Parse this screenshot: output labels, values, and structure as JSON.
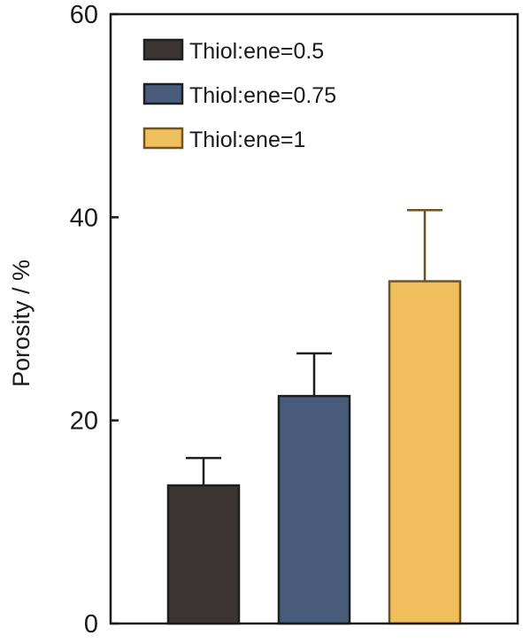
{
  "chart_data": {
    "type": "bar",
    "title": "",
    "xlabel": "",
    "ylabel": "Porosity / %",
    "ylim": [
      0,
      60
    ],
    "yticks": [
      "0",
      "20",
      "40",
      "60"
    ],
    "ytick_values": [
      0,
      20,
      40,
      60
    ],
    "grid": false,
    "legend_position": "top-left",
    "series": [
      {
        "name": "Thiol:ene=0.5",
        "value": 13.6,
        "error": 2.7,
        "color": "#3b3430"
      },
      {
        "name": "Thiol:ene=0.75",
        "value": 22.4,
        "error": 4.2,
        "color": "#475c7b"
      },
      {
        "name": "Thiol:ene=1",
        "value": 33.7,
        "error": 7.0,
        "color": "#f0bf5d"
      }
    ],
    "stroke_colors": [
      "#1e1e1e",
      "#1e1e1e",
      "#6e5326"
    ]
  }
}
